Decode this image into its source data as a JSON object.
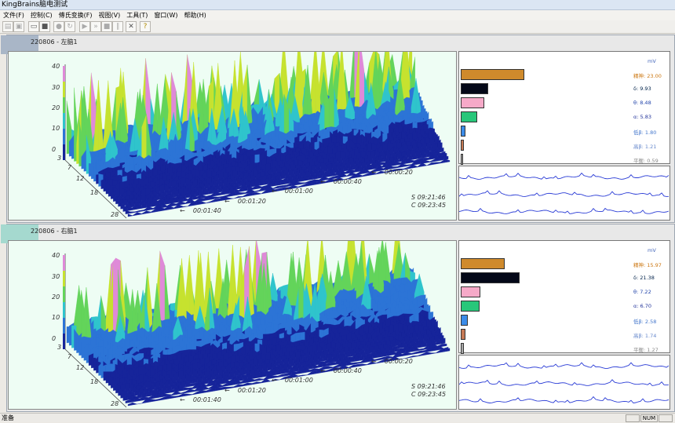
{
  "window": {
    "title": "KingBrains脑电测试"
  },
  "menu": [
    "文件(F)",
    "控制(C)",
    "傅氏变换(F)",
    "视图(V)",
    "工具(T)",
    "窗口(W)",
    "帮助(H)"
  ],
  "toolbar": {
    "icons": [
      "open-icon",
      "save-icon",
      "open-folder-icon",
      "save-disk-icon",
      "record-icon",
      "refresh-icon",
      "play-icon",
      "fast-forward-icon",
      "stop-icon",
      "pause-icon",
      "close-icon",
      "help-icon"
    ]
  },
  "panels": [
    {
      "title": "220806 - 左脑1",
      "y_ticks": [
        "0",
        "10",
        "20",
        "30",
        "40"
      ],
      "x_ticks": [
        "3",
        "7",
        "12",
        "18",
        "28"
      ],
      "time_labels": [
        "00:00:20",
        "00:00:40",
        "00:01:00",
        "00:01:20",
        "00:01:40"
      ],
      "stamps": [
        "S 09:21:46",
        "C 09:23:45"
      ],
      "unit": "mV",
      "bands": [
        {
          "name": "精神:",
          "value": "23.00",
          "level": 23.0,
          "color": "#cf8a2c",
          "text_color": "#cc7711"
        },
        {
          "name": "δ:",
          "value": "9.93",
          "level": 9.93,
          "color": "#040818",
          "text_color": "#00224a"
        },
        {
          "name": "θ:",
          "value": "8.48",
          "level": 8.48,
          "color": "#f6a9c8",
          "text_color": "#2244aa"
        },
        {
          "name": "α:",
          "value": "5.83",
          "level": 5.83,
          "color": "#28c77a",
          "text_color": "#22339a"
        },
        {
          "name": "低β:",
          "value": "1.80",
          "level": 1.8,
          "color": "#3c8ce8",
          "text_color": "#4477cc"
        },
        {
          "name": "高β:",
          "value": "1.21",
          "level": 1.21,
          "color": "#c67a55",
          "text_color": "#6688cc"
        },
        {
          "name": "平衡:",
          "value": "0.59",
          "level": 0.59,
          "color": "#aaaaaa",
          "text_color": "#888888"
        }
      ]
    },
    {
      "title": "220806 - 右脑1",
      "y_ticks": [
        "0",
        "10",
        "20",
        "30",
        "40"
      ],
      "x_ticks": [
        "3",
        "7",
        "12",
        "18",
        "28"
      ],
      "time_labels": [
        "00:00:20",
        "00:00:40",
        "00:01:00",
        "00:01:20",
        "00:01:40"
      ],
      "stamps": [
        "S 09:21:46",
        "C 09:23:45"
      ],
      "unit": "mV",
      "bands": [
        {
          "name": "精神:",
          "value": "15.97",
          "level": 15.97,
          "color": "#cf8a2c",
          "text_color": "#cc7711"
        },
        {
          "name": "δ:",
          "value": "21.38",
          "level": 21.38,
          "color": "#040818",
          "text_color": "#00224a"
        },
        {
          "name": "θ:",
          "value": "7.22",
          "level": 7.22,
          "color": "#f6a9c8",
          "text_color": "#2244aa"
        },
        {
          "name": "α:",
          "value": "6.70",
          "level": 6.7,
          "color": "#28c77a",
          "text_color": "#22339a"
        },
        {
          "name": "低β:",
          "value": "2.58",
          "level": 2.58,
          "color": "#3c8ce8",
          "text_color": "#4477cc"
        },
        {
          "name": "高β:",
          "value": "1.74",
          "level": 1.74,
          "color": "#c67a55",
          "text_color": "#6688cc"
        },
        {
          "name": "平衡:",
          "value": "1.27",
          "level": 1.27,
          "color": "#aaaaaa",
          "text_color": "#888888"
        }
      ]
    }
  ],
  "statusbar": {
    "text": "准备",
    "num": "NUM"
  }
}
